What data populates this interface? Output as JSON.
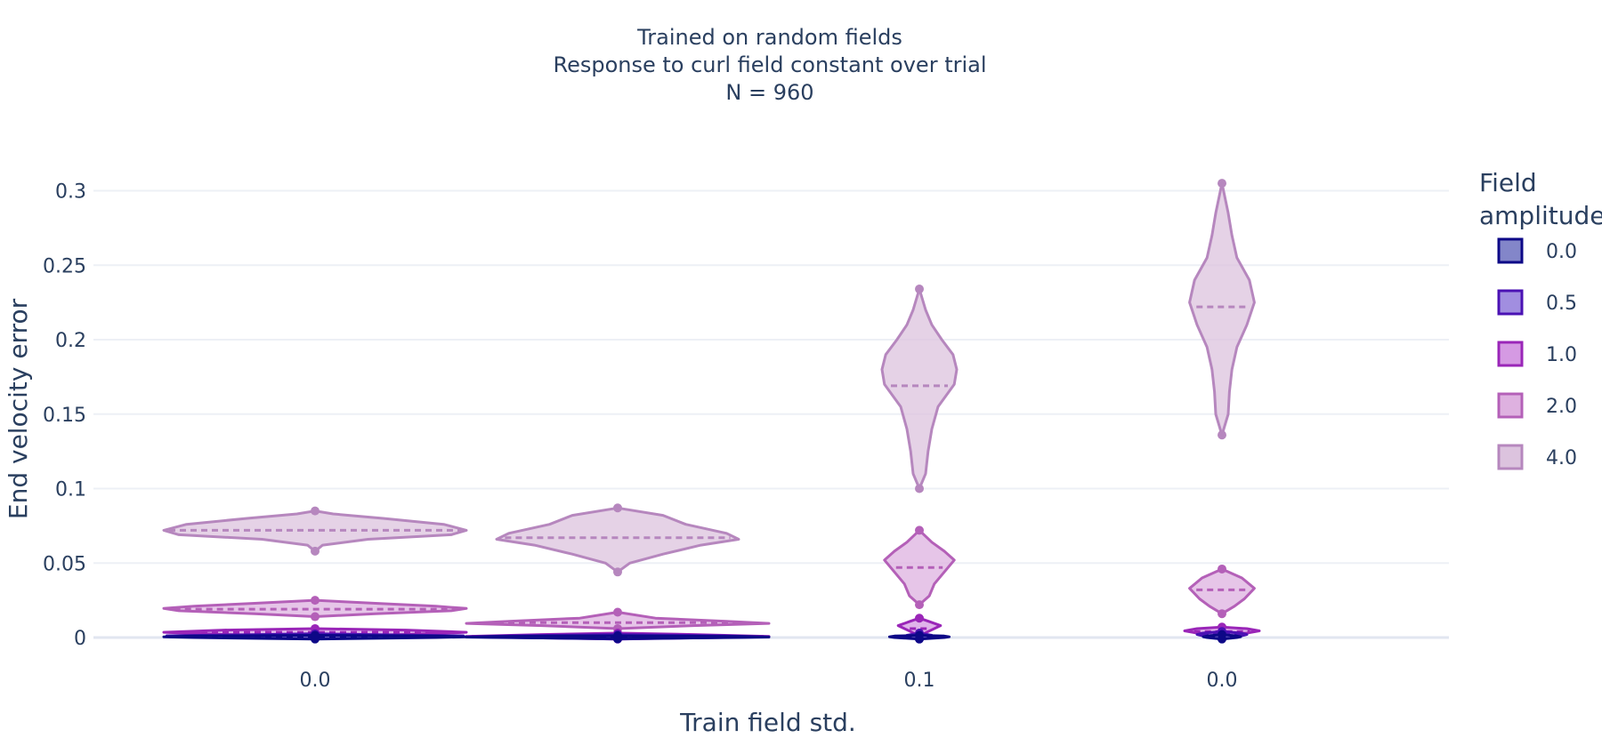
{
  "chart_data": {
    "type": "violin",
    "title_lines": [
      "Trained on random fields",
      "Response to curl field constant over trial",
      "N = 960"
    ],
    "xlabel": "Train field std.",
    "ylabel": "End velocity error",
    "x_tick_labels": [
      "0.0",
      "0.1",
      "0.0"
    ],
    "y_ticks": [
      0,
      0.05,
      0.1,
      0.15,
      0.2,
      0.25,
      0.3
    ],
    "y_tick_labels": [
      "0",
      "0.05",
      "0.1",
      "0.15",
      "0.2",
      "0.25",
      "0.3"
    ],
    "ylim": [
      -0.01,
      0.33
    ],
    "grid": true,
    "legend": {
      "title_lines": [
        "Field",
        "amplitude"
      ],
      "position": "right",
      "entries": [
        {
          "label": "0.0",
          "color": "#0d0887",
          "fill": "#8386c9"
        },
        {
          "label": "0.5",
          "color": "#4b12b4",
          "fill": "#a18ee0"
        },
        {
          "label": "1.0",
          "color": "#9a26b8",
          "fill": "#d59ae3"
        },
        {
          "label": "2.0",
          "color": "#b460b8",
          "fill": "#deb1e0"
        },
        {
          "label": "4.0",
          "color": "#b687be",
          "fill": "#dcc3de"
        }
      ]
    },
    "violins": [
      {
        "group": 0,
        "series": 4,
        "median": 0.072,
        "min": 0.058,
        "max": 0.085,
        "profile": [
          [
            0.058,
            0.0
          ],
          [
            0.062,
            0.05
          ],
          [
            0.066,
            0.35
          ],
          [
            0.069,
            0.9
          ],
          [
            0.072,
            1.0
          ],
          [
            0.076,
            0.85
          ],
          [
            0.08,
            0.45
          ],
          [
            0.083,
            0.12
          ],
          [
            0.085,
            0.0
          ]
        ]
      },
      {
        "group": 0,
        "series": 3,
        "median": 0.019,
        "min": 0.014,
        "max": 0.025,
        "profile": [
          [
            0.014,
            0.0
          ],
          [
            0.016,
            0.4
          ],
          [
            0.018,
            0.9
          ],
          [
            0.0195,
            1.0
          ],
          [
            0.021,
            0.8
          ],
          [
            0.023,
            0.4
          ],
          [
            0.025,
            0.0
          ]
        ]
      },
      {
        "group": 0,
        "series": 2,
        "median": 0.0035,
        "min": 0.001,
        "max": 0.006,
        "profile": [
          [
            0.001,
            0.0
          ],
          [
            0.002,
            0.6
          ],
          [
            0.0035,
            1.0
          ],
          [
            0.005,
            0.6
          ],
          [
            0.006,
            0.0
          ]
        ]
      },
      {
        "group": 0,
        "series": 1,
        "median": 0.0012,
        "min": 0.0,
        "max": 0.0025,
        "profile": [
          [
            0.0,
            0.0
          ],
          [
            0.0006,
            0.5
          ],
          [
            0.0012,
            0.98
          ],
          [
            0.0018,
            0.5
          ],
          [
            0.0025,
            0.0
          ]
        ]
      },
      {
        "group": 0,
        "series": 0,
        "median": 0.0005,
        "min": -0.001,
        "max": 0.0015,
        "profile": [
          [
            -0.001,
            0.0
          ],
          [
            0.0,
            0.8
          ],
          [
            0.0005,
            1.0
          ],
          [
            0.001,
            0.8
          ],
          [
            0.0015,
            0.0
          ]
        ]
      },
      {
        "group": 1,
        "series": 4,
        "median": 0.067,
        "min": 0.044,
        "max": 0.087,
        "profile": [
          [
            0.044,
            0.0
          ],
          [
            0.05,
            0.08
          ],
          [
            0.056,
            0.3
          ],
          [
            0.062,
            0.55
          ],
          [
            0.066,
            0.8
          ],
          [
            0.07,
            0.72
          ],
          [
            0.076,
            0.45
          ],
          [
            0.082,
            0.3
          ],
          [
            0.087,
            0.0
          ]
        ]
      },
      {
        "group": 1,
        "series": 3,
        "median": 0.01,
        "min": 0.006,
        "max": 0.017,
        "profile": [
          [
            0.006,
            0.0
          ],
          [
            0.008,
            0.5
          ],
          [
            0.0095,
            1.0
          ],
          [
            0.011,
            0.7
          ],
          [
            0.013,
            0.25
          ],
          [
            0.017,
            0.0
          ]
        ]
      },
      {
        "group": 1,
        "series": 2,
        "median": 0.0008,
        "min": -0.001,
        "max": 0.003,
        "profile": [
          [
            -0.001,
            0.0
          ],
          [
            0.0,
            0.6
          ],
          [
            0.0008,
            1.0
          ],
          [
            0.002,
            0.5
          ],
          [
            0.003,
            0.0
          ]
        ]
      },
      {
        "group": 1,
        "series": 1,
        "median": 0.0005,
        "min": -0.001,
        "max": 0.002,
        "profile": [
          [
            -0.001,
            0.0
          ],
          [
            0.0,
            0.7
          ],
          [
            0.0005,
            1.0
          ],
          [
            0.0012,
            0.7
          ],
          [
            0.002,
            0.0
          ]
        ]
      },
      {
        "group": 1,
        "series": 0,
        "median": 0.0003,
        "min": -0.0008,
        "max": 0.0012,
        "profile": [
          [
            -0.0008,
            0.0
          ],
          [
            0.0,
            0.8
          ],
          [
            0.0003,
            1.0
          ],
          [
            0.0008,
            0.8
          ],
          [
            0.0012,
            0.0
          ]
        ]
      },
      {
        "group": 2,
        "series": 4,
        "median": 0.169,
        "min": 0.1,
        "max": 0.234,
        "profile": [
          [
            0.1,
            0.0
          ],
          [
            0.11,
            0.05
          ],
          [
            0.125,
            0.07
          ],
          [
            0.14,
            0.1
          ],
          [
            0.155,
            0.15
          ],
          [
            0.17,
            0.28
          ],
          [
            0.18,
            0.3
          ],
          [
            0.19,
            0.27
          ],
          [
            0.2,
            0.18
          ],
          [
            0.21,
            0.1
          ],
          [
            0.22,
            0.05
          ],
          [
            0.234,
            0.0
          ]
        ]
      },
      {
        "group": 2,
        "series": 3,
        "median": 0.047,
        "min": 0.022,
        "max": 0.072,
        "profile": [
          [
            0.022,
            0.0
          ],
          [
            0.028,
            0.08
          ],
          [
            0.036,
            0.12
          ],
          [
            0.044,
            0.2
          ],
          [
            0.052,
            0.28
          ],
          [
            0.058,
            0.2
          ],
          [
            0.064,
            0.1
          ],
          [
            0.072,
            0.0
          ]
        ]
      },
      {
        "group": 2,
        "series": 2,
        "median": 0.006,
        "min": 0.001,
        "max": 0.013,
        "profile": [
          [
            0.001,
            0.0
          ],
          [
            0.004,
            0.07
          ],
          [
            0.008,
            0.17
          ],
          [
            0.011,
            0.07
          ],
          [
            0.013,
            0.0
          ]
        ]
      },
      {
        "group": 2,
        "series": 1,
        "median": 0.001,
        "min": -0.001,
        "max": 0.003,
        "profile": [
          [
            -0.001,
            0.0
          ],
          [
            0.0005,
            0.08
          ],
          [
            0.0015,
            0.1
          ],
          [
            0.003,
            0.0
          ]
        ]
      },
      {
        "group": 2,
        "series": 0,
        "median": 0.0005,
        "min": -0.001,
        "max": 0.0015,
        "profile": [
          [
            -0.001,
            0.0
          ],
          [
            0.0,
            0.2
          ],
          [
            0.0005,
            0.24
          ],
          [
            0.001,
            0.2
          ],
          [
            0.0015,
            0.0
          ]
        ]
      },
      {
        "group": 3,
        "series": 4,
        "median": 0.222,
        "min": 0.136,
        "max": 0.305,
        "profile": [
          [
            0.136,
            0.0
          ],
          [
            0.15,
            0.05
          ],
          [
            0.165,
            0.06
          ],
          [
            0.18,
            0.08
          ],
          [
            0.195,
            0.12
          ],
          [
            0.21,
            0.2
          ],
          [
            0.225,
            0.26
          ],
          [
            0.24,
            0.22
          ],
          [
            0.255,
            0.12
          ],
          [
            0.27,
            0.08
          ],
          [
            0.285,
            0.05
          ],
          [
            0.305,
            0.0
          ]
        ]
      },
      {
        "group": 3,
        "series": 3,
        "median": 0.032,
        "min": 0.016,
        "max": 0.046,
        "profile": [
          [
            0.016,
            0.0
          ],
          [
            0.021,
            0.1
          ],
          [
            0.026,
            0.18
          ],
          [
            0.033,
            0.26
          ],
          [
            0.04,
            0.16
          ],
          [
            0.046,
            0.0
          ]
        ]
      },
      {
        "group": 3,
        "series": 2,
        "median": 0.004,
        "min": 0.002,
        "max": 0.007,
        "profile": [
          [
            0.002,
            0.0
          ],
          [
            0.003,
            0.2
          ],
          [
            0.0045,
            0.3
          ],
          [
            0.006,
            0.2
          ],
          [
            0.007,
            0.0
          ]
        ]
      },
      {
        "group": 3,
        "series": 1,
        "median": 0.002,
        "min": 0.0,
        "max": 0.004,
        "profile": [
          [
            0.0,
            0.0
          ],
          [
            0.001,
            0.15
          ],
          [
            0.002,
            0.2
          ],
          [
            0.003,
            0.15
          ],
          [
            0.004,
            0.0
          ]
        ]
      },
      {
        "group": 3,
        "series": 0,
        "median": 0.0005,
        "min": -0.001,
        "max": 0.002,
        "profile": [
          [
            -0.001,
            0.0
          ],
          [
            0.0,
            0.12
          ],
          [
            0.0005,
            0.15
          ],
          [
            0.001,
            0.12
          ],
          [
            0.002,
            0.0
          ]
        ]
      }
    ]
  }
}
